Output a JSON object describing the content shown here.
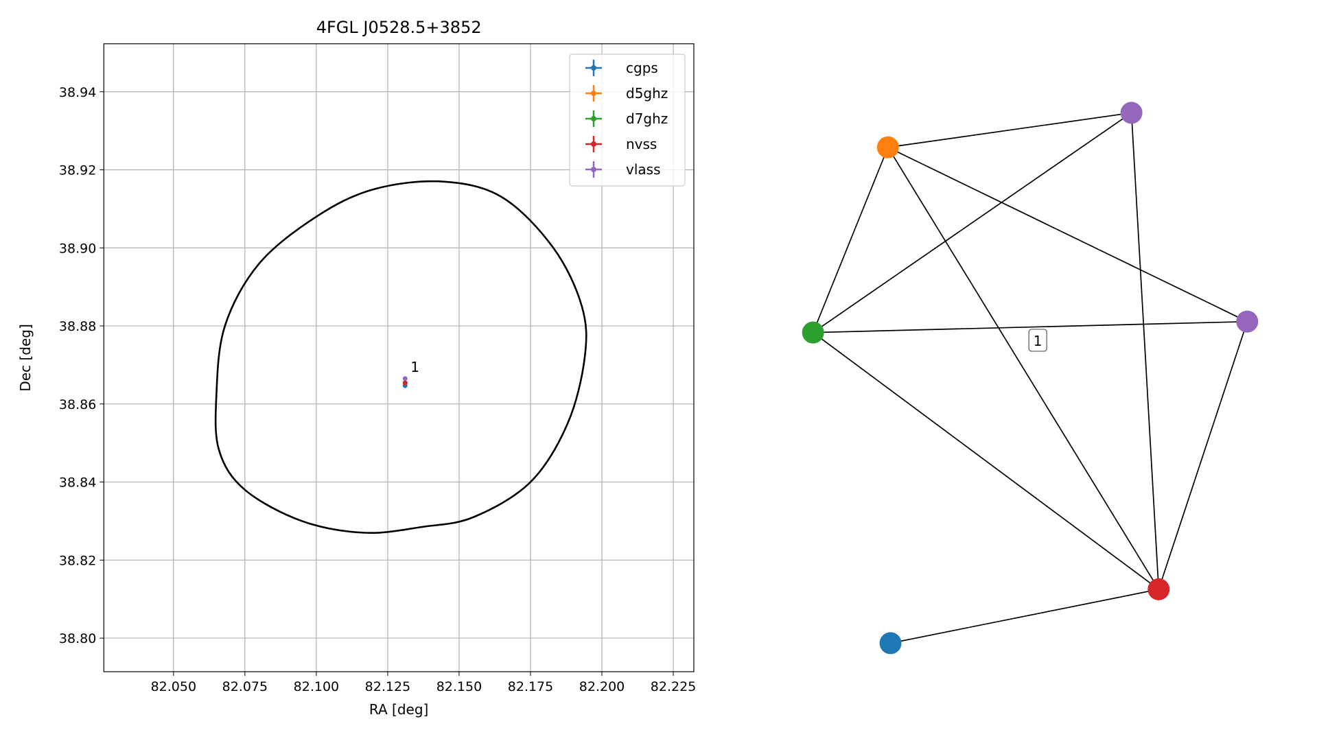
{
  "chart_data": [
    {
      "type": "scatter",
      "title": "4FGL J0528.5+3852",
      "xlabel": "RA [deg]",
      "ylabel": "Dec [deg]",
      "xlim": [
        82.0256,
        82.2322
      ],
      "ylim": [
        38.7914,
        38.9523
      ],
      "xticks": [
        {
          "value": 82.05,
          "label": "82.050"
        },
        {
          "value": 82.075,
          "label": "82.075"
        },
        {
          "value": 82.1,
          "label": "82.100"
        },
        {
          "value": 82.125,
          "label": "82.125"
        },
        {
          "value": 82.15,
          "label": "82.150"
        },
        {
          "value": 82.175,
          "label": "82.175"
        },
        {
          "value": 82.2,
          "label": "82.200"
        },
        {
          "value": 82.225,
          "label": "82.225"
        }
      ],
      "yticks": [
        {
          "value": 38.8,
          "label": "38.80"
        },
        38.82,
        38.84,
        38.86,
        38.88,
        {
          "value": 38.9,
          "label": "38.90"
        },
        38.92,
        38.94
      ],
      "grid": true,
      "legend": "upper right",
      "series": [
        {
          "name": "cgps",
          "color": "#1f77b4",
          "x": [
            82.1311
          ],
          "y": [
            38.8647
          ]
        },
        {
          "name": "d5ghz",
          "color": "#ff7f0e",
          "x": [
            82.1311
          ],
          "y": [
            38.8654
          ]
        },
        {
          "name": "d7ghz",
          "color": "#2ca02c",
          "x": [
            82.1311
          ],
          "y": [
            38.8654
          ]
        },
        {
          "name": "nvss",
          "color": "#d62728",
          "x": [
            82.1311
          ],
          "y": [
            38.8654
          ]
        },
        {
          "name": "vlass",
          "color": "#9467bd",
          "x": [
            82.1311
          ],
          "y": [
            38.8665
          ]
        }
      ],
      "annotation": "1",
      "contour": {
        "color": "#000000",
        "x": [
          82.065,
          82.068,
          82.08,
          82.1,
          82.12,
          82.144,
          82.165,
          82.183,
          82.193,
          82.194,
          82.188,
          82.175,
          82.155,
          82.137,
          82.117,
          82.095,
          82.075,
          82.066
        ],
        "y": [
          38.862,
          38.88,
          38.896,
          38.908,
          38.915,
          38.917,
          38.913,
          38.9,
          38.885,
          38.872,
          38.855,
          38.84,
          38.831,
          38.8285,
          38.827,
          38.83,
          38.838,
          38.848
        ]
      }
    },
    {
      "type": "network",
      "node_colors": [
        "#ff7f0e",
        "#9467bd",
        "#2ca02c",
        "#9467bd",
        "#d62728",
        "#1f77b4"
      ],
      "edges": [
        [
          0,
          1
        ],
        [
          0,
          2
        ],
        [
          0,
          3
        ],
        [
          0,
          4
        ],
        [
          1,
          2
        ],
        [
          1,
          4
        ],
        [
          2,
          3
        ],
        [
          2,
          4
        ],
        [
          3,
          4
        ],
        [
          4,
          5
        ]
      ],
      "edge_label": "1"
    }
  ]
}
